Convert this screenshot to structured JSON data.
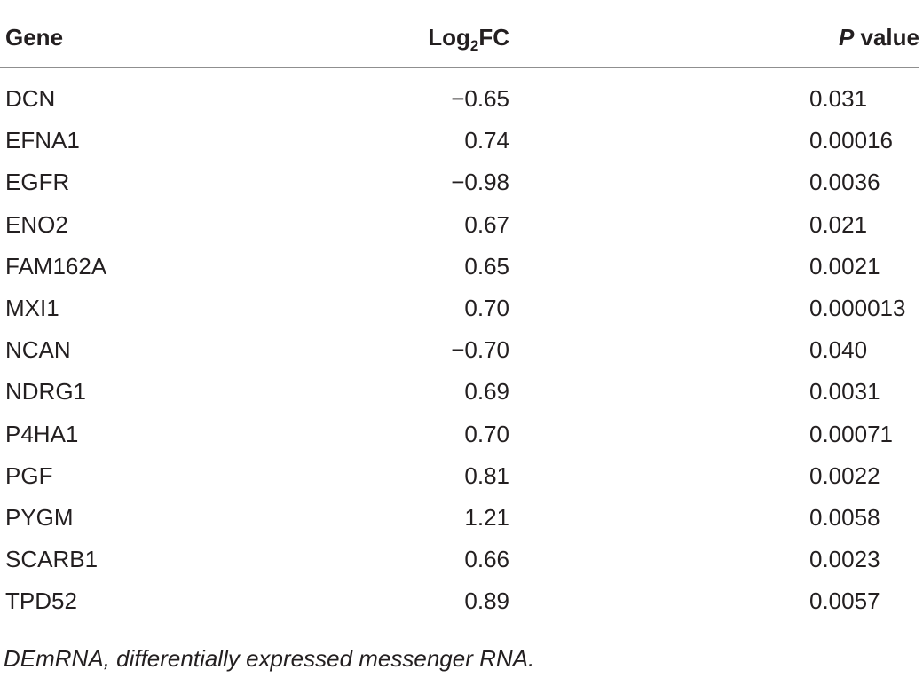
{
  "table": {
    "headers": {
      "gene": "Gene",
      "log2fc_prefix": "Log",
      "log2fc_sub": "2",
      "log2fc_suffix": "FC",
      "p_italic": "P",
      "p_rest": " value"
    },
    "rows": [
      {
        "gene": "DCN",
        "log2fc": "−0.65",
        "p": "0.031"
      },
      {
        "gene": "EFNA1",
        "log2fc": "0.74",
        "p": "0.00016"
      },
      {
        "gene": "EGFR",
        "log2fc": "−0.98",
        "p": "0.0036"
      },
      {
        "gene": "ENO2",
        "log2fc": "0.67",
        "p": "0.021"
      },
      {
        "gene": "FAM162A",
        "log2fc": "0.65",
        "p": "0.0021"
      },
      {
        "gene": "MXI1",
        "log2fc": "0.70",
        "p": "0.000013"
      },
      {
        "gene": "NCAN",
        "log2fc": "−0.70",
        "p": "0.040"
      },
      {
        "gene": "NDRG1",
        "log2fc": "0.69",
        "p": "0.0031"
      },
      {
        "gene": "P4HA1",
        "log2fc": "0.70",
        "p": "0.00071"
      },
      {
        "gene": "PGF",
        "log2fc": "0.81",
        "p": "0.0022"
      },
      {
        "gene": "PYGM",
        "log2fc": "1.21",
        "p": "0.0058"
      },
      {
        "gene": "SCARB1",
        "log2fc": "0.66",
        "p": "0.0023"
      },
      {
        "gene": "TPD52",
        "log2fc": "0.89",
        "p": "0.0057"
      }
    ]
  },
  "footnote": "DEmRNA, differentially expressed messenger RNA."
}
